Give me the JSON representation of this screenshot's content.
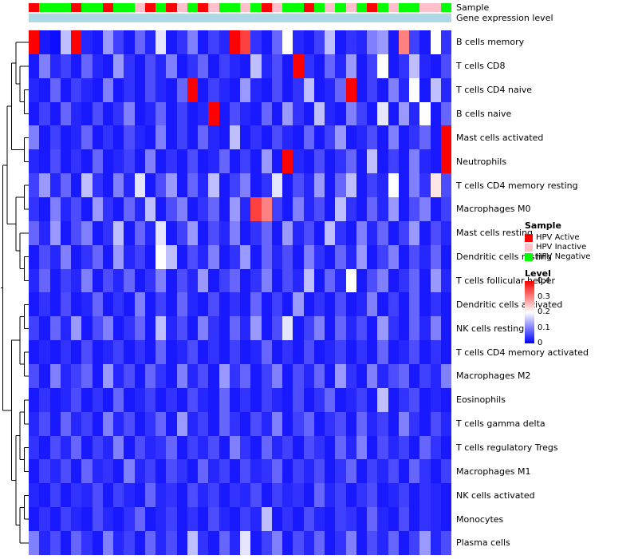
{
  "annotations": {
    "sample_label": "Sample",
    "gene_label": "Gene expression level",
    "gene_bar_color": "#ADD8E6",
    "sample_colors": {
      "HPV Active": "#FF0000",
      "HPV Inactive": "#FFC0CB",
      "HPV Negative": "#00FF00"
    },
    "samples": [
      "HPV Active",
      "HPV Negative",
      "HPV Negative",
      "HPV Negative",
      "HPV Active",
      "HPV Negative",
      "HPV Negative",
      "HPV Active",
      "HPV Negative",
      "HPV Negative",
      "HPV Inactive",
      "HPV Active",
      "HPV Negative",
      "HPV Active",
      "HPV Inactive",
      "HPV Negative",
      "HPV Active",
      "HPV Inactive",
      "HPV Negative",
      "HPV Negative",
      "HPV Inactive",
      "HPV Negative",
      "HPV Active",
      "HPV Inactive",
      "HPV Negative",
      "HPV Negative",
      "HPV Active",
      "HPV Negative",
      "HPV Inactive",
      "HPV Negative",
      "HPV Inactive",
      "HPV Negative",
      "HPV Active",
      "HPV Negative",
      "HPV Inactive",
      "HPV Negative",
      "HPV Negative",
      "HPV Inactive",
      "HPV Inactive",
      "HPV Negative"
    ]
  },
  "legend": {
    "sample_title": "Sample",
    "sample_items": [
      {
        "label": "HPV Active",
        "color": "#FF0000"
      },
      {
        "label": "HPV Inactive",
        "color": "#FFC0CB"
      },
      {
        "label": "HPV Negative",
        "color": "#00FF00"
      }
    ],
    "level_title": "Level",
    "level_ticks": [
      "0.4",
      "0.3",
      "0.2",
      "0.1",
      "0"
    ],
    "level_gradient_colors": [
      "#FF0000",
      "#FFFFFF",
      "#0000FF"
    ]
  },
  "chart_data": {
    "type": "heatmap",
    "title": "",
    "colormap": "blue-white-red",
    "value_range": [
      0,
      0.4
    ],
    "n_cols": 40,
    "rows": [
      "B cells memory",
      "T cells CD8",
      "T cells CD4 naive",
      "B cells naive",
      "Mast cells activated",
      "Neutrophils",
      "T cells CD4 memory resting",
      "Macrophages M0",
      "Mast cells resting",
      "Dendritic cells resting",
      "T cells follicular helper",
      "Dendritic cells activated",
      "NK cells resting",
      "T cells CD4 memory activated",
      "Macrophages M2",
      "Eosinophils",
      "T cells gamma delta",
      "T cells regulatory Tregs",
      "Macrophages M1",
      "NK cells activated",
      "Monocytes",
      "Plasma cells"
    ],
    "column_annotation": {
      "name": "Sample",
      "values_key": "annotations.samples"
    },
    "row_dendrogram": [
      [
        [
          [
            0,
            [
              1,
              [
                2,
                3
              ]
            ]
          ],
          [
            4,
            5
          ]
        ],
        [
          [
            6,
            7
          ],
          [
            8,
            [
              9,
              10
            ]
          ]
        ]
      ],
      [
        [
          [
            11,
            12
          ],
          [
            13,
            14
          ]
        ],
        [
          [
            [
              15,
              16
            ],
            [
              17,
              18
            ]
          ],
          [
            [
              19,
              20
            ],
            21
          ]
        ]
      ]
    ],
    "values": [
      [
        0.4,
        0.02,
        0.01,
        0.15,
        0.4,
        0.03,
        0.02,
        0.12,
        0.05,
        0.02,
        0.08,
        0.03,
        0.18,
        0.02,
        0.04,
        0.1,
        0.02,
        0.05,
        0.03,
        0.4,
        0.35,
        0.04,
        0.02,
        0.08,
        0.2,
        0.03,
        0.02,
        0.05,
        0.15,
        0.02,
        0.04,
        0.03,
        0.1,
        0.12,
        0.02,
        0.3,
        0.05,
        0.02,
        0.2,
        0.04
      ],
      [
        0.02,
        0.1,
        0.03,
        0.05,
        0.02,
        0.08,
        0.03,
        0.02,
        0.12,
        0.04,
        0.02,
        0.06,
        0.03,
        0.1,
        0.02,
        0.04,
        0.08,
        0.02,
        0.05,
        0.03,
        0.02,
        0.15,
        0.03,
        0.06,
        0.02,
        0.4,
        0.04,
        0.02,
        0.08,
        0.03,
        0.12,
        0.02,
        0.05,
        0.2,
        0.02,
        0.04,
        0.15,
        0.03,
        0.02,
        0.06
      ],
      [
        0.03,
        0.02,
        0.08,
        0.02,
        0.05,
        0.03,
        0.02,
        0.1,
        0.02,
        0.04,
        0.02,
        0.06,
        0.03,
        0.02,
        0.08,
        0.4,
        0.02,
        0.05,
        0.03,
        0.02,
        0.12,
        0.03,
        0.02,
        0.06,
        0.02,
        0.04,
        0.15,
        0.02,
        0.03,
        0.08,
        0.4,
        0.02,
        0.05,
        0.02,
        0.1,
        0.03,
        0.2,
        0.02,
        0.15,
        0.03
      ],
      [
        0.02,
        0.05,
        0.02,
        0.08,
        0.03,
        0.02,
        0.06,
        0.02,
        0.04,
        0.1,
        0.02,
        0.03,
        0.08,
        0.02,
        0.05,
        0.02,
        0.03,
        0.4,
        0.02,
        0.06,
        0.03,
        0.02,
        0.08,
        0.02,
        0.12,
        0.04,
        0.02,
        0.15,
        0.03,
        0.02,
        0.1,
        0.05,
        0.02,
        0.18,
        0.02,
        0.12,
        0.03,
        0.2,
        0.02,
        0.08
      ],
      [
        0.1,
        0.02,
        0.05,
        0.02,
        0.03,
        0.08,
        0.02,
        0.04,
        0.02,
        0.06,
        0.03,
        0.02,
        0.1,
        0.02,
        0.05,
        0.02,
        0.08,
        0.03,
        0.02,
        0.15,
        0.02,
        0.04,
        0.02,
        0.06,
        0.03,
        0.02,
        0.08,
        0.02,
        0.05,
        0.12,
        0.02,
        0.03,
        0.06,
        0.02,
        0.1,
        0.02,
        0.04,
        0.08,
        0.02,
        0.4
      ],
      [
        0.03,
        0.02,
        0.06,
        0.02,
        0.04,
        0.02,
        0.08,
        0.02,
        0.03,
        0.05,
        0.02,
        0.1,
        0.02,
        0.04,
        0.02,
        0.06,
        0.02,
        0.03,
        0.08,
        0.02,
        0.05,
        0.02,
        0.12,
        0.02,
        0.4,
        0.03,
        0.02,
        0.06,
        0.02,
        0.04,
        0.08,
        0.02,
        0.15,
        0.02,
        0.05,
        0.02,
        0.1,
        0.03,
        0.02,
        0.4
      ],
      [
        0.05,
        0.12,
        0.03,
        0.08,
        0.02,
        0.15,
        0.04,
        0.02,
        0.1,
        0.03,
        0.18,
        0.02,
        0.06,
        0.12,
        0.02,
        0.08,
        0.03,
        0.15,
        0.02,
        0.05,
        0.1,
        0.02,
        0.04,
        0.18,
        0.02,
        0.06,
        0.03,
        0.12,
        0.02,
        0.08,
        0.15,
        0.02,
        0.05,
        0.03,
        0.2,
        0.02,
        0.1,
        0.04,
        0.22,
        0.06
      ],
      [
        0.04,
        0.02,
        0.1,
        0.03,
        0.06,
        0.02,
        0.12,
        0.04,
        0.02,
        0.08,
        0.03,
        0.15,
        0.02,
        0.06,
        0.1,
        0.02,
        0.04,
        0.08,
        0.02,
        0.12,
        0.03,
        0.35,
        0.3,
        0.05,
        0.02,
        0.1,
        0.03,
        0.06,
        0.02,
        0.15,
        0.04,
        0.02,
        0.08,
        0.03,
        0.12,
        0.02,
        0.06,
        0.1,
        0.02,
        0.05
      ],
      [
        0.08,
        0.03,
        0.12,
        0.02,
        0.06,
        0.1,
        0.02,
        0.04,
        0.15,
        0.02,
        0.08,
        0.03,
        0.18,
        0.02,
        0.05,
        0.12,
        0.02,
        0.06,
        0.03,
        0.1,
        0.02,
        0.04,
        0.08,
        0.02,
        0.12,
        0.03,
        0.06,
        0.02,
        0.15,
        0.04,
        0.02,
        0.1,
        0.03,
        0.08,
        0.02,
        0.05,
        0.12,
        0.02,
        0.06,
        0.03
      ],
      [
        0.02,
        0.06,
        0.03,
        0.1,
        0.02,
        0.04,
        0.08,
        0.02,
        0.12,
        0.03,
        0.05,
        0.02,
        0.2,
        0.15,
        0.02,
        0.06,
        0.03,
        0.1,
        0.02,
        0.04,
        0.12,
        0.02,
        0.08,
        0.03,
        0.06,
        0.02,
        0.1,
        0.04,
        0.02,
        0.08,
        0.03,
        0.12,
        0.02,
        0.05,
        0.1,
        0.02,
        0.06,
        0.03,
        0.08,
        0.02
      ],
      [
        0.03,
        0.08,
        0.02,
        0.05,
        0.03,
        0.1,
        0.02,
        0.06,
        0.03,
        0.08,
        0.02,
        0.04,
        0.1,
        0.02,
        0.06,
        0.03,
        0.12,
        0.02,
        0.05,
        0.08,
        0.02,
        0.04,
        0.1,
        0.02,
        0.06,
        0.03,
        0.15,
        0.02,
        0.08,
        0.03,
        0.2,
        0.02,
        0.06,
        0.1,
        0.02,
        0.04,
        0.08,
        0.02,
        0.12,
        0.03
      ],
      [
        0.02,
        0.04,
        0.02,
        0.06,
        0.02,
        0.03,
        0.08,
        0.02,
        0.04,
        0.02,
        0.1,
        0.02,
        0.05,
        0.02,
        0.08,
        0.03,
        0.02,
        0.06,
        0.02,
        0.04,
        0.02,
        0.08,
        0.02,
        0.05,
        0.02,
        0.12,
        0.02,
        0.04,
        0.02,
        0.06,
        0.02,
        0.03,
        0.1,
        0.02,
        0.05,
        0.02,
        0.08,
        0.02,
        0.04,
        0.02
      ],
      [
        0.05,
        0.02,
        0.08,
        0.03,
        0.12,
        0.02,
        0.06,
        0.1,
        0.02,
        0.04,
        0.08,
        0.02,
        0.15,
        0.03,
        0.06,
        0.02,
        0.1,
        0.04,
        0.02,
        0.08,
        0.03,
        0.12,
        0.02,
        0.06,
        0.18,
        0.02,
        0.05,
        0.1,
        0.02,
        0.08,
        0.03,
        0.06,
        0.02,
        0.12,
        0.04,
        0.02,
        0.08,
        0.03,
        0.1,
        0.02
      ],
      [
        0.02,
        0.03,
        0.02,
        0.04,
        0.02,
        0.06,
        0.02,
        0.03,
        0.05,
        0.02,
        0.04,
        0.02,
        0.08,
        0.02,
        0.03,
        0.06,
        0.02,
        0.04,
        0.02,
        0.05,
        0.02,
        0.03,
        0.08,
        0.02,
        0.04,
        0.02,
        0.06,
        0.02,
        0.03,
        0.05,
        0.02,
        0.04,
        0.02,
        0.08,
        0.02,
        0.03,
        0.06,
        0.02,
        0.04,
        0.02
      ],
      [
        0.06,
        0.02,
        0.1,
        0.03,
        0.05,
        0.08,
        0.02,
        0.12,
        0.03,
        0.06,
        0.02,
        0.08,
        0.04,
        0.02,
        0.1,
        0.03,
        0.06,
        0.02,
        0.12,
        0.04,
        0.08,
        0.02,
        0.05,
        0.1,
        0.02,
        0.06,
        0.03,
        0.08,
        0.02,
        0.12,
        0.04,
        0.02,
        0.1,
        0.03,
        0.06,
        0.08,
        0.02,
        0.05,
        0.03,
        0.1
      ],
      [
        0.02,
        0.04,
        0.02,
        0.03,
        0.06,
        0.02,
        0.04,
        0.02,
        0.08,
        0.02,
        0.03,
        0.05,
        0.02,
        0.04,
        0.02,
        0.06,
        0.03,
        0.02,
        0.08,
        0.02,
        0.04,
        0.02,
        0.05,
        0.03,
        0.02,
        0.06,
        0.02,
        0.04,
        0.08,
        0.02,
        0.03,
        0.05,
        0.02,
        0.15,
        0.02,
        0.04,
        0.06,
        0.02,
        0.03,
        0.02
      ],
      [
        0.03,
        0.06,
        0.02,
        0.08,
        0.03,
        0.05,
        0.02,
        0.1,
        0.03,
        0.06,
        0.02,
        0.04,
        0.08,
        0.02,
        0.12,
        0.03,
        0.05,
        0.02,
        0.08,
        0.04,
        0.02,
        0.06,
        0.03,
        0.1,
        0.02,
        0.05,
        0.08,
        0.02,
        0.04,
        0.06,
        0.02,
        0.08,
        0.03,
        0.05,
        0.02,
        0.1,
        0.04,
        0.02,
        0.06,
        0.03
      ],
      [
        0.04,
        0.02,
        0.06,
        0.03,
        0.08,
        0.02,
        0.05,
        0.03,
        0.1,
        0.02,
        0.06,
        0.03,
        0.04,
        0.08,
        0.02,
        0.05,
        0.03,
        0.06,
        0.02,
        0.1,
        0.04,
        0.02,
        0.08,
        0.03,
        0.05,
        0.02,
        0.06,
        0.04,
        0.02,
        0.08,
        0.03,
        0.1,
        0.02,
        0.06,
        0.03,
        0.05,
        0.02,
        0.08,
        0.04,
        0.02
      ],
      [
        0.02,
        0.05,
        0.03,
        0.06,
        0.02,
        0.08,
        0.03,
        0.04,
        0.02,
        0.1,
        0.03,
        0.05,
        0.02,
        0.06,
        0.04,
        0.02,
        0.08,
        0.03,
        0.05,
        0.02,
        0.06,
        0.03,
        0.04,
        0.08,
        0.02,
        0.05,
        0.03,
        0.06,
        0.02,
        0.04,
        0.08,
        0.02,
        0.05,
        0.03,
        0.06,
        0.02,
        0.08,
        0.04,
        0.02,
        0.05
      ],
      [
        0.03,
        0.02,
        0.05,
        0.02,
        0.04,
        0.03,
        0.06,
        0.02,
        0.05,
        0.03,
        0.02,
        0.08,
        0.03,
        0.04,
        0.02,
        0.06,
        0.03,
        0.05,
        0.02,
        0.04,
        0.03,
        0.06,
        0.02,
        0.05,
        0.03,
        0.04,
        0.02,
        0.08,
        0.03,
        0.05,
        0.02,
        0.04,
        0.06,
        0.02,
        0.03,
        0.05,
        0.02,
        0.04,
        0.03,
        0.02
      ],
      [
        0.02,
        0.04,
        0.02,
        0.05,
        0.03,
        0.02,
        0.06,
        0.03,
        0.02,
        0.04,
        0.08,
        0.02,
        0.03,
        0.05,
        0.02,
        0.04,
        0.02,
        0.06,
        0.03,
        0.02,
        0.05,
        0.03,
        0.15,
        0.02,
        0.04,
        0.02,
        0.06,
        0.03,
        0.02,
        0.05,
        0.04,
        0.02,
        0.08,
        0.03,
        0.02,
        0.06,
        0.02,
        0.04,
        0.03,
        0.02
      ],
      [
        0.1,
        0.03,
        0.06,
        0.02,
        0.08,
        0.04,
        0.02,
        0.1,
        0.03,
        0.05,
        0.02,
        0.08,
        0.03,
        0.06,
        0.02,
        0.15,
        0.04,
        0.02,
        0.08,
        0.03,
        0.18,
        0.02,
        0.05,
        0.1,
        0.02,
        0.06,
        0.03,
        0.08,
        0.02,
        0.04,
        0.1,
        0.02,
        0.06,
        0.03,
        0.08,
        0.02,
        0.05,
        0.12,
        0.03,
        0.06
      ]
    ]
  }
}
